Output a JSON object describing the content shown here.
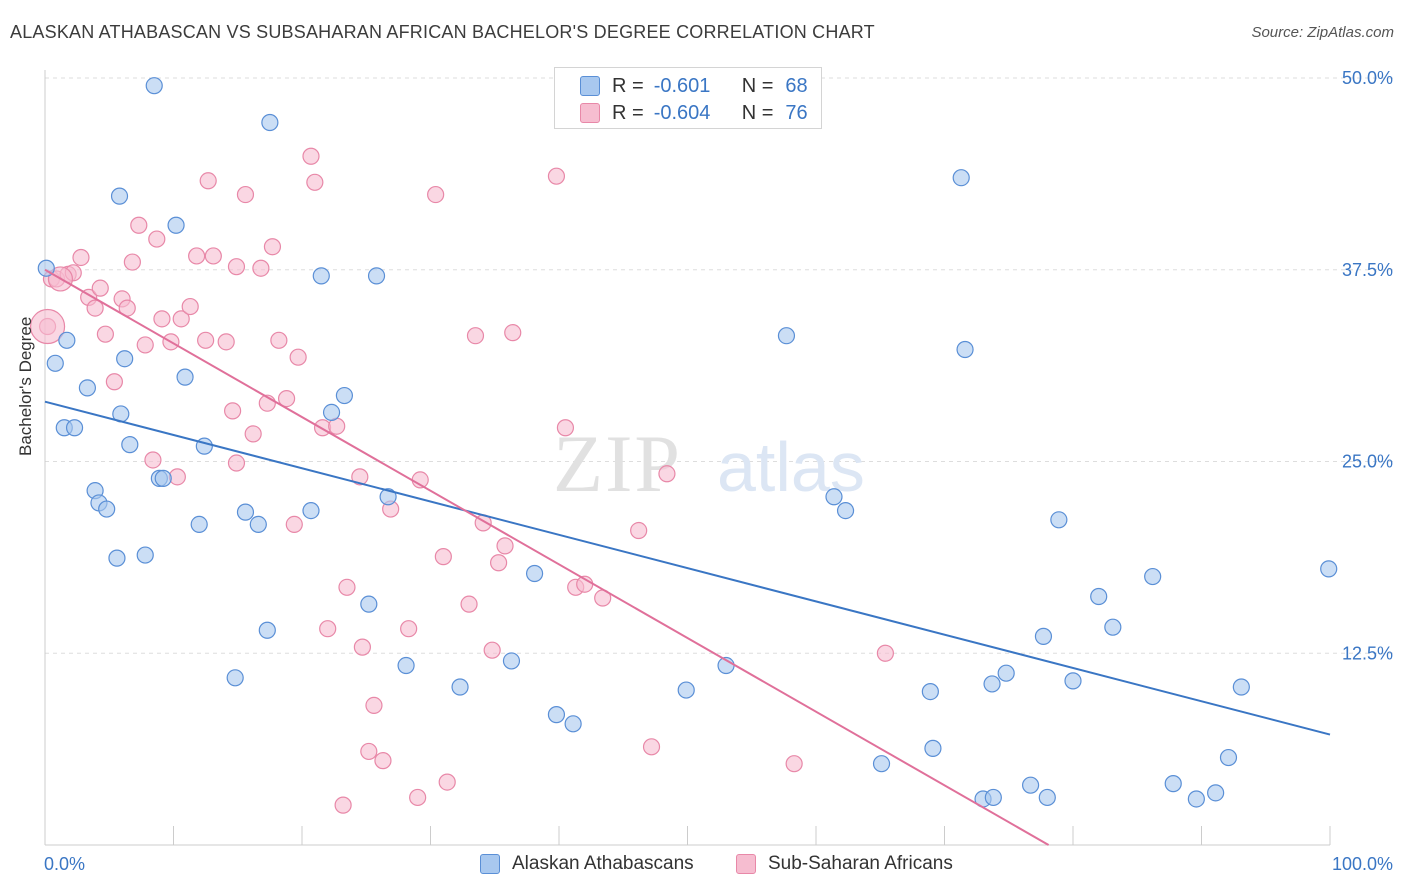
{
  "title": "ALASKAN ATHABASCAN VS SUBSAHARAN AFRICAN BACHELOR'S DEGREE CORRELATION CHART",
  "source": "Source: ZipAtlas.com",
  "watermark": {
    "zip": "ZIP",
    "atlas": "atlas"
  },
  "legend": {
    "rows": [
      {
        "r_label": "R =",
        "r_value": "-0.601",
        "n_label": "N =",
        "n_value": "68",
        "color": "#a8c8ef",
        "stroke": "#5a8fd6"
      },
      {
        "r_label": "R =",
        "r_value": "-0.604",
        "n_label": "N =",
        "n_value": "76",
        "color": "#f6bdd0",
        "stroke": "#e888a8"
      }
    ]
  },
  "bottom_legend": [
    {
      "label": "Alaskan Athabascans",
      "color": "#a8c8ef",
      "stroke": "#5a8fd6"
    },
    {
      "label": "Sub-Saharan Africans",
      "color": "#f6bdd0",
      "stroke": "#e888a8"
    }
  ],
  "chart_data": {
    "type": "scatter",
    "title": "ALASKAN ATHABASCAN VS SUBSAHARAN AFRICAN BACHELOR'S DEGREE CORRELATION CHART",
    "xlabel": "",
    "ylabel": "Bachelor's Degree",
    "xlim": [
      0,
      100
    ],
    "ylim": [
      0,
      52
    ],
    "x_tick_labels": [
      "0.0%",
      "100.0%"
    ],
    "y_ticks": [
      12.5,
      25.0,
      37.5,
      50.0
    ],
    "y_tick_labels": [
      "12.5%",
      "25.0%",
      "37.5%",
      "50.0%"
    ],
    "grid": "horizontal dashed",
    "colors": {
      "blue": "#a8c8ef",
      "blue_stroke": "#5a8fd6",
      "blue_line": "#3a76c4",
      "pink": "#f6bdd0",
      "pink_stroke": "#e888a8",
      "pink_line": "#e0709a",
      "tick_label": "#3a76c4"
    },
    "series": [
      {
        "name": "Alaskan Athabascans",
        "trend": {
          "x": [
            0,
            100
          ],
          "y": [
            28.9,
            7.2
          ]
        },
        "points": [
          [
            0.1,
            37.6
          ],
          [
            0.8,
            31.4
          ],
          [
            1.5,
            27.2
          ],
          [
            1.7,
            32.9
          ],
          [
            2.3,
            27.2
          ],
          [
            3.3,
            29.8
          ],
          [
            3.9,
            23.1
          ],
          [
            4.2,
            22.3
          ],
          [
            4.8,
            21.9
          ],
          [
            5.6,
            18.7
          ],
          [
            5.8,
            42.3
          ],
          [
            5.9,
            28.1
          ],
          [
            6.2,
            31.7
          ],
          [
            6.6,
            26.1
          ],
          [
            7.8,
            18.9
          ],
          [
            8.5,
            49.5
          ],
          [
            8.9,
            23.9
          ],
          [
            9.2,
            23.9
          ],
          [
            10.2,
            40.4
          ],
          [
            10.9,
            30.5
          ],
          [
            12.0,
            20.9
          ],
          [
            12.4,
            26.0
          ],
          [
            14.8,
            10.9
          ],
          [
            15.6,
            21.7
          ],
          [
            16.6,
            20.9
          ],
          [
            17.3,
            14.0
          ],
          [
            17.5,
            47.1
          ],
          [
            20.7,
            21.8
          ],
          [
            21.5,
            37.1
          ],
          [
            22.3,
            28.2
          ],
          [
            23.3,
            29.3
          ],
          [
            25.2,
            15.7
          ],
          [
            25.8,
            37.1
          ],
          [
            26.7,
            22.7
          ],
          [
            28.1,
            11.7
          ],
          [
            32.3,
            10.3
          ],
          [
            36.3,
            12.0
          ],
          [
            38.1,
            17.7
          ],
          [
            39.8,
            8.5
          ],
          [
            41.1,
            7.9
          ],
          [
            49.9,
            10.1
          ],
          [
            53.0,
            11.7
          ],
          [
            57.7,
            33.2
          ],
          [
            61.4,
            22.7
          ],
          [
            62.3,
            21.8
          ],
          [
            65.1,
            5.3
          ],
          [
            68.9,
            10.0
          ],
          [
            69.1,
            6.3
          ],
          [
            71.3,
            43.5
          ],
          [
            71.6,
            32.3
          ],
          [
            73.0,
            3.0
          ],
          [
            73.7,
            10.5
          ],
          [
            73.8,
            3.1
          ],
          [
            74.8,
            11.2
          ],
          [
            76.7,
            3.9
          ],
          [
            77.7,
            13.6
          ],
          [
            78.0,
            3.1
          ],
          [
            78.9,
            21.2
          ],
          [
            80.0,
            10.7
          ],
          [
            82.0,
            16.2
          ],
          [
            83.1,
            14.2
          ],
          [
            86.2,
            17.5
          ],
          [
            87.8,
            4.0
          ],
          [
            89.6,
            3.0
          ],
          [
            91.1,
            3.4
          ],
          [
            92.1,
            5.7
          ],
          [
            93.1,
            10.3
          ],
          [
            99.9,
            18.0
          ]
        ]
      },
      {
        "name": "Sub-Saharan Africans",
        "trend": {
          "x": [
            0,
            78.1
          ],
          "y": [
            37.5,
            0
          ]
        },
        "points": [
          [
            0.2,
            33.8
          ],
          [
            0.5,
            36.9
          ],
          [
            0.9,
            36.9
          ],
          [
            1.8,
            37.2
          ],
          [
            2.2,
            37.3
          ],
          [
            2.8,
            38.3
          ],
          [
            3.4,
            35.7
          ],
          [
            3.9,
            35.0
          ],
          [
            4.3,
            36.3
          ],
          [
            4.7,
            33.3
          ],
          [
            5.4,
            30.2
          ],
          [
            6.0,
            35.6
          ],
          [
            6.4,
            35.0
          ],
          [
            6.8,
            38.0
          ],
          [
            7.3,
            40.4
          ],
          [
            7.8,
            32.6
          ],
          [
            8.4,
            25.1
          ],
          [
            8.7,
            39.5
          ],
          [
            9.1,
            34.3
          ],
          [
            9.8,
            32.8
          ],
          [
            10.3,
            24.0
          ],
          [
            10.6,
            34.3
          ],
          [
            11.3,
            35.1
          ],
          [
            11.8,
            38.4
          ],
          [
            12.5,
            32.9
          ],
          [
            12.7,
            43.3
          ],
          [
            13.1,
            38.4
          ],
          [
            14.1,
            32.8
          ],
          [
            14.6,
            28.3
          ],
          [
            14.9,
            37.7
          ],
          [
            14.9,
            24.9
          ],
          [
            15.6,
            42.4
          ],
          [
            16.2,
            26.8
          ],
          [
            16.8,
            37.6
          ],
          [
            17.3,
            28.8
          ],
          [
            17.7,
            39.0
          ],
          [
            18.2,
            32.9
          ],
          [
            18.8,
            29.1
          ],
          [
            19.4,
            20.9
          ],
          [
            19.7,
            31.8
          ],
          [
            20.7,
            44.9
          ],
          [
            21.0,
            43.2
          ],
          [
            21.6,
            27.2
          ],
          [
            22.0,
            14.1
          ],
          [
            22.7,
            27.3
          ],
          [
            23.2,
            2.6
          ],
          [
            23.5,
            16.8
          ],
          [
            24.5,
            24.0
          ],
          [
            24.7,
            12.9
          ],
          [
            25.2,
            6.1
          ],
          [
            25.6,
            9.1
          ],
          [
            26.3,
            5.5
          ],
          [
            26.9,
            21.9
          ],
          [
            28.3,
            14.1
          ],
          [
            29.0,
            3.1
          ],
          [
            29.2,
            23.8
          ],
          [
            30.4,
            42.4
          ],
          [
            31.0,
            18.8
          ],
          [
            31.3,
            4.1
          ],
          [
            33.0,
            15.7
          ],
          [
            33.5,
            33.2
          ],
          [
            34.1,
            21.0
          ],
          [
            34.8,
            12.7
          ],
          [
            35.3,
            18.4
          ],
          [
            35.8,
            19.5
          ],
          [
            36.4,
            33.4
          ],
          [
            39.8,
            43.6
          ],
          [
            40.5,
            27.2
          ],
          [
            41.3,
            16.8
          ],
          [
            42.0,
            17.0
          ],
          [
            43.4,
            16.1
          ],
          [
            46.2,
            20.5
          ],
          [
            47.2,
            6.4
          ],
          [
            48.4,
            24.2
          ],
          [
            58.3,
            5.3
          ],
          [
            65.4,
            12.5
          ]
        ]
      }
    ]
  }
}
